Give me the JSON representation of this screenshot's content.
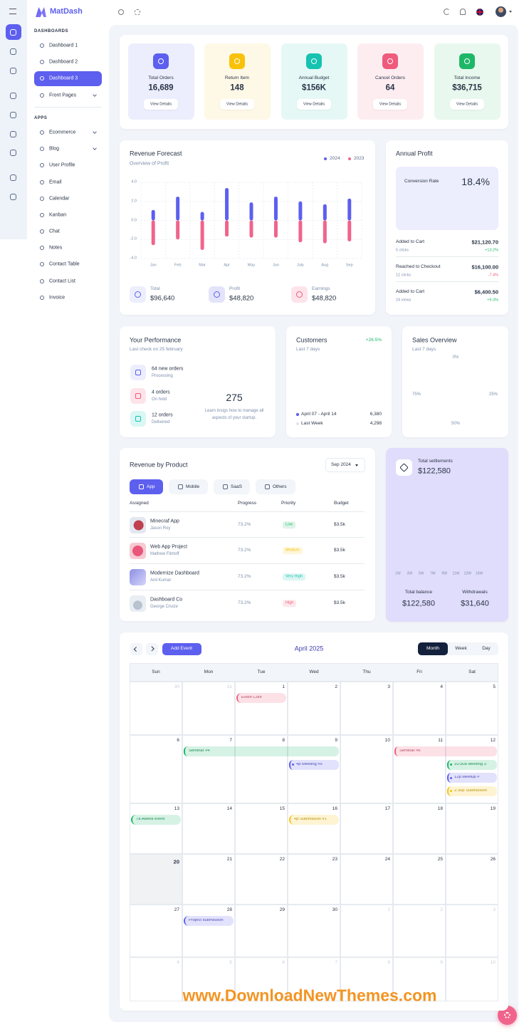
{
  "brand": "MatDash",
  "sidebar": {
    "sections": [
      {
        "title": "DASHBOARDS",
        "items": [
          "Dashboard 1",
          "Dashboard 2",
          "Dashboard 3",
          "Front Pages"
        ]
      },
      {
        "title": "APPS",
        "items": [
          "Ecommerce",
          "Blog",
          "User Profile",
          "Email",
          "Calendar",
          "Kanban",
          "Chat",
          "Notes",
          "Contact Table",
          "Contact List",
          "Invoice"
        ]
      }
    ]
  },
  "stats": [
    {
      "label": "Total Orders",
      "value": "16,689",
      "button": "View Details",
      "color": "#5d5fef",
      "bg": "#eceefe"
    },
    {
      "label": "Return Item",
      "value": "148",
      "button": "View Details",
      "color": "#f8c20a",
      "bg": "#fef8e6"
    },
    {
      "label": "Annual Budget",
      "value": "$156K",
      "button": "View Details",
      "color": "#16c2b0",
      "bg": "#e6f8f6"
    },
    {
      "label": "Cancel Orders",
      "value": "64",
      "button": "View Details",
      "color": "#ef5b7b",
      "bg": "#fdedf1"
    },
    {
      "label": "Total Income",
      "value": "$36,715",
      "button": "View Details",
      "color": "#1eb768",
      "bg": "#e8f8ee"
    }
  ],
  "revenue_forecast": {
    "title": "Revenue Forecast",
    "subtitle": "Overview of Profit",
    "chart": {
      "type": "bar",
      "categories": [
        "Jan",
        "Feb",
        "Mar",
        "Apr",
        "May",
        "Jun",
        "July",
        "Aug",
        "Sep"
      ],
      "series": [
        {
          "name": "2024",
          "color": "#5d5fef",
          "values": [
            1.1,
            2.5,
            0.9,
            3.4,
            1.9,
            2.5,
            2.0,
            1.7,
            2.3
          ]
        },
        {
          "name": "2023",
          "color": "#f0648c",
          "values": [
            -2.6,
            -2.0,
            -3.1,
            -1.7,
            -1.8,
            -1.8,
            -2.3,
            -2.4,
            -2.2
          ]
        }
      ],
      "ylim": [
        -4,
        4
      ],
      "yticks": [
        {
          "value": 4,
          "label": "4.0"
        },
        {
          "value": 2,
          "label": "2.0"
        },
        {
          "value": 0,
          "label": "0.0"
        },
        {
          "value": -2,
          "label": "-2.0"
        },
        {
          "value": -4,
          "label": "-4.0"
        }
      ],
      "grid": true
    },
    "totals": [
      {
        "label": "Total",
        "value": "$96,640",
        "color": "#5d5fef",
        "bg": "#eceefe"
      },
      {
        "label": "Profit",
        "value": "$48,820",
        "color": "#5d5fef",
        "bg": "#e3e4fb"
      },
      {
        "label": "Earnings",
        "value": "$48,820",
        "color": "#ef5b7b",
        "bg": "#fde3ea"
      }
    ]
  },
  "annual_profit": {
    "title": "Annual Profit",
    "conversion_label": "Conversion Rate",
    "conversion_value": "18.4%",
    "rows": [
      {
        "label": "Added to Cart",
        "sub": "5 clicks",
        "value": "$21,120.70",
        "change": "+13.2%",
        "color": "#1eb768"
      },
      {
        "label": "Reached to Checkout",
        "sub": "12 clicks",
        "value": "$16,100.00",
        "change": "-7.4%",
        "color": "#ef5b7b"
      },
      {
        "label": "Added to Cart",
        "sub": "24 views",
        "value": "$6,400.50",
        "change": "+9.3%",
        "color": "#1eb768"
      }
    ]
  },
  "performance": {
    "title": "Your Performance",
    "subtitle": "Last check on 25 february",
    "items": [
      {
        "title": "64 new orders",
        "status": "Processing",
        "color": "#5d5fef",
        "bg": "#eceefe"
      },
      {
        "title": "4 orders",
        "status": "On hold",
        "color": "#ef5b7b",
        "bg": "#fde3ea"
      },
      {
        "title": "12 orders",
        "status": "Delivered",
        "color": "#16c2b0",
        "bg": "#d9f7f4"
      }
    ],
    "gauge_value": "275",
    "note": "Learn insigs how to manage all aspects of your startup."
  },
  "customers": {
    "title": "Customers",
    "change": "+26.5%",
    "subtitle": "Last 7 days",
    "legend": [
      {
        "label": "April 07 - April 14",
        "value": "6,380"
      },
      {
        "label": "Last Week",
        "value": "4,298"
      }
    ]
  },
  "sales_overview": {
    "title": "Sales Overview",
    "subtitle": "Last 7 days",
    "labels": [
      "0%",
      "25%",
      "50%",
      "75%"
    ]
  },
  "products": {
    "title": "Revenue by Product",
    "period": "Sep 2024",
    "tabs": [
      "App",
      "Mobile",
      "SaaS",
      "Others"
    ],
    "columns": [
      "Assigned",
      "Progress",
      "Priority",
      "Budget"
    ],
    "rows": [
      {
        "name": "Minecraf App",
        "owner": "Jason Roy",
        "progress": "73.2%",
        "priority": "Low",
        "budget": "$3.5k",
        "color": "#1eb768"
      },
      {
        "name": "Web App Project",
        "owner": "Mathew Flintoff",
        "progress": "73.2%",
        "priority": "Medium",
        "budget": "$3.5k",
        "color": "#f8c20a"
      },
      {
        "name": "Modernize Dashboard",
        "owner": "Anil Kumar",
        "progress": "73.2%",
        "priority": "Very High",
        "budget": "$3.5k",
        "color": "#16c2b0"
      },
      {
        "name": "Dashboard Co",
        "owner": "George Cruize",
        "progress": "73.2%",
        "priority": "High",
        "budget": "$3.5k",
        "color": "#ef5b7b"
      }
    ]
  },
  "settlements": {
    "title": "Total settlements",
    "value": "$122,580",
    "weeks": [
      "1W",
      "3W",
      "5W",
      "7W",
      "9W",
      "11W",
      "13W",
      "16W"
    ],
    "balance_label": "Total balance",
    "balance": "$122,580",
    "withdrawals_label": "Withdrawals",
    "withdrawals": "$31,640"
  },
  "calendar": {
    "add_button": "Add Event",
    "month": "April 2025",
    "views": [
      "Month",
      "Week",
      "Day"
    ],
    "weekdays": [
      "Sun",
      "Mon",
      "Tue",
      "Wed",
      "Thu",
      "Fri",
      "Sat"
    ],
    "today": 20,
    "weeks": [
      {
        "days": [
          30,
          31,
          1,
          2,
          3,
          4,
          5
        ],
        "events": [
          {
            "title": "Event Conf",
            "start": 1,
            "end": 1,
            "color": "#ef5b7b"
          }
        ]
      },
      {
        "days": [
          6,
          7,
          8,
          9,
          10,
          11,
          12
        ],
        "events": [
          {
            "title": "Seminar #4",
            "start": 7,
            "end": 9,
            "color": "#1eb768"
          },
          {
            "title": "4p Meeting #5",
            "start": 9,
            "end": 9,
            "color": "#5d5fef"
          },
          {
            "title": "Seminar #6",
            "start": 11,
            "end": 12,
            "color": "#ef5b7b"
          },
          {
            "title": "10:30a Meeting 3",
            "start": 12,
            "end": 12,
            "color": "#1eb768"
          },
          {
            "title": "12p Meetup #",
            "start": 12,
            "end": 12,
            "color": "#5d5fef"
          },
          {
            "title": "2:30p Submission",
            "start": 12,
            "end": 12,
            "color": "#f8c20a"
          }
        ]
      },
      {
        "days": [
          13,
          14,
          15,
          16,
          17,
          18,
          19
        ],
        "events": [
          {
            "title": "7a Attend event",
            "start": 13,
            "end": 13,
            "color": "#1eb768"
          },
          {
            "title": "4p Submission #1",
            "start": 16,
            "end": 16,
            "color": "#f8c20a"
          }
        ]
      },
      {
        "days": [
          20,
          21,
          22,
          23,
          24,
          25,
          26
        ],
        "events": []
      },
      {
        "days": [
          27,
          28,
          29,
          30,
          1,
          2,
          3
        ],
        "events": [
          {
            "title": "Project submission",
            "start": 28,
            "end": 28,
            "color": "#5d5fef"
          }
        ]
      },
      {
        "days": [
          4,
          5,
          6,
          7,
          8,
          9,
          10
        ],
        "events": []
      }
    ]
  },
  "watermark": "www.DownloadNewThemes.com"
}
